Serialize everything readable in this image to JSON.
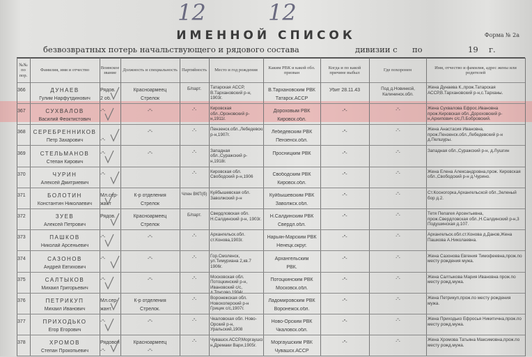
{
  "handwritten": {
    "sheet1": "12",
    "sheet2": "12"
  },
  "title": "ИМЕННОЙ СПИСОК",
  "form_label": "Форма № 2а",
  "subtitle": {
    "text": "безвозвратных потерь начальствующего и рядового состава",
    "division": "дивизии с",
    "to": "по",
    "year": "19",
    "year_suffix": "г."
  },
  "headers": [
    "№№ по пор.",
    "Фамилия, имя и отчество",
    "Воинское звание",
    "Должность и специальность",
    "Партийность",
    "Место и год рождения",
    "Каким РВК и какой обл. призван",
    "Когда и по какой причине выбыл",
    "Где похоронен",
    "Имя, отчество и фамилия, адрес жены или родителей"
  ],
  "highlight_color": "#f07878",
  "rows": [
    {
      "num": "366",
      "surname": "ДУНАЕВ",
      "given": "Гулим Нарфутдинович",
      "rank": "Рядов.",
      "rank2": "2 об.",
      "pos": "Красноармеец",
      "pos2": "Стрелок",
      "party": "Б/парт.",
      "birth": "Татарская АССР, В.Тархановский р-н, 1903г.",
      "rvk": "В.Тархановским РВК",
      "rvk2": "Татарск.АССР",
      "when": "Убит 28.11.43",
      "burial": "Под д.Новинкой, Калининск.обл.",
      "relatives": "Жена Дунаева К.,прож.Татарская АССР,В.Тархановский р-н,с.Тарханы."
    },
    {
      "num": "367",
      "surname": "СУХВАЛОВ",
      "given": "Василий Феоктистович",
      "rank": "-\"-",
      "rank2": "",
      "pos": "-\"-",
      "pos2": "",
      "party": "-\"-",
      "birth": "Кировская обл.,Ороновский р-н,1911г.",
      "rvk": "Дороховым РВК",
      "rvk2": "Кировск.обл.",
      "when": "-\"-",
      "burial": "-\"-",
      "relatives": "Жена Сухвалова Ефрос.Ивановна прож.Кировская обл.,Дороховский р-н,Архипович с/с,П.Бобровский."
    },
    {
      "num": "368",
      "surname": "СЕРЕБРЕННИКОВ",
      "given": "Петр Захарович",
      "rank": "",
      "rank2": "-\"-",
      "pos": "-\"-",
      "pos2": "",
      "party": "-\"-",
      "birth": "Пензенск.обл.,Лебедевский р-н,1907г.",
      "rvk": "Лебедевским РВК",
      "rvk2": "Пензенск.обл.",
      "when": "-\"-",
      "burial": "-\"-",
      "relatives": "Жена Анастасия Ивановна, прож.Пензенск.обл.,Лебедевский р-н д.Пелшуры."
    },
    {
      "num": "369",
      "surname": "СТЕЛЬМАНОВ",
      "given": "Степан Кирович",
      "rank": "-\"-",
      "rank2": "",
      "pos": "-\"-",
      "pos2": "",
      "party": "-\"-",
      "birth": "Западная обл.,Суражский р-н,1918г.",
      "rvk": "Просницким РВК",
      "rvk2": "",
      "when": "-\"-",
      "burial": "-\"-",
      "relatives": "Западная обл.,Суражский р-н, д.Лушгин"
    },
    {
      "num": "370",
      "surname": "ЧУРИН",
      "given": "Алексей Дмитриевич",
      "rank": "-\"-",
      "rank2": "",
      "pos": "",
      "pos2": "",
      "party": "-\"-",
      "birth": "Кировская обл. Свободский р-н,1906",
      "rvk": "Свободским РВК",
      "rvk2": "Кировск.обл.",
      "when": "-\"-",
      "burial": "-\"-",
      "relatives": "Жена Елена Александровна,прож. Кировская обл.,Свободский р-н д.Чурино."
    },
    {
      "num": "371",
      "surname": "БОЛОТИН",
      "given": "Константин Николаевич",
      "rank": "Мл.сер-",
      "rank2": "жант",
      "pos": "К-р отделения",
      "pos2": "Стрелок",
      "party": "Член ВКП(б)",
      "birth": "Куйбышевская обл. Заволжский р-н",
      "rvk": "Куйбышевским РВК",
      "rvk2": "Заволжск.обл.",
      "when": "-\"-",
      "burial": "-\"-",
      "relatives": "Ст.Косногорка,Архангельской обл.,Зеленый бор д.2."
    },
    {
      "num": "372",
      "surname": "ЗУЕВ",
      "given": "Алексей Петрович",
      "rank": "Рядов.",
      "rank2": "",
      "pos": "Красноармеец",
      "pos2": "Стрелок",
      "party": "Б/парт.",
      "birth": "Свердловская обл. Н.Салдинский р-н, 1903г.",
      "rvk": "Н.Салдинским РВК",
      "rvk2": "Свердл.обл.",
      "when": "-\"-",
      "burial": "-\"-",
      "relatives": "Тетя Пелагея Арсентьевна, прож.Свердловская обл.,Н.Салдинский р-н,3 Подушинская д.107."
    },
    {
      "num": "373",
      "surname": "ПАШКОВ",
      "given": "Николай Арсеньевич",
      "rank": "-\"-",
      "rank2": "",
      "pos": "-\"-",
      "pos2": "",
      "party": "-\"-",
      "birth": "Архангельск.обл. ст.Конова,1903г.",
      "rvk": "Нарьян-Марским РВК",
      "rvk2": "Ненецк.округ.",
      "when": "-\"-",
      "burial": "-\"-",
      "relatives": "Архангельск.обл.ст.Конова д.Данов,Жена Пашкова А.Николаевна."
    },
    {
      "num": "374",
      "surname": "САЗОНОВ",
      "given": "Андрей Евтихович",
      "rank": "-\"-",
      "rank2": "",
      "pos": "-\"-",
      "pos2": "",
      "party": "-\"-",
      "birth": "Гор.Смоленск, ул.Тимуриана 2,кв.7 1906г.",
      "rvk": "Архангельским",
      "rvk2": "РВК.",
      "when": "-\"-",
      "burial": "-\"-",
      "relatives": "Жена Сазонова Евгения Тимофеевна,прож.по месту рождения мужа."
    },
    {
      "num": "375",
      "surname": "САЛТЫКОВ",
      "given": "Михаил Григорьевич",
      "rank": "-\"-",
      "rank2": "",
      "pos": "-\"-",
      "pos2": "",
      "party": "-\"-",
      "birth": "Московская обл. Потоцкинский р-н, Ивановский с/с, д.Трусово,1904г.",
      "rvk": "Потоцкинским РВК",
      "rvk2": "Московск.обл.",
      "when": "-\"-",
      "burial": "-\"-",
      "relatives": "Жена Салтыкова Мария Ивановна прож.по месту рожд.мужа."
    },
    {
      "num": "376",
      "surname": "ПЕТРИКУП",
      "given": "Михаил Иванович",
      "rank": "Мл.сер-",
      "rank2": "жант.",
      "pos": "К-р отделения",
      "pos2": "Стрелок.",
      "party": "-\"-",
      "birth": "Воронежская обл. Новохоперский р-н Грицик с/с,1907г.",
      "rvk": "Ладомировским РВК",
      "rvk2": "Воронежск.обл.",
      "when": "-\"-",
      "burial": "-\"-",
      "relatives": "Жена Петрикуп,прож.по месту рождения мужа."
    },
    {
      "num": "377",
      "surname": "ПРИХОДЬКО",
      "given": "Егор Егорович",
      "rank": "-\"-",
      "rank2": "",
      "pos": "-\"-",
      "pos2": "",
      "party": "-\"-",
      "birth": "Чкаловская обл. Ново-Орский р-н, Уральский,1908",
      "rvk": "Ново-Орским РВК",
      "rvk2": "Чкаловск.обл.",
      "when": "-\"-",
      "burial": "-\"-",
      "relatives": "Жена Приходько Ефросья Никитична,прож.по месту рожд.мужа."
    },
    {
      "num": "378",
      "surname": "ХРОМОВ",
      "given": "Степан Прокопьевич",
      "rank": "Рядовой",
      "rank2": "-\"-",
      "pos": "Красноармеец",
      "pos2": "-\"-",
      "party": "-\"-",
      "birth": "Чувашск.АССР,Моргаушск.р-н,Дремаки Вари,1905г.",
      "rvk": "Моргаушским РВК",
      "rvk2": "Чувашск.АССР",
      "when": "-\"-",
      "burial": "-\"-",
      "relatives": "Жена Хромова Татьяна Максимовна,прож.по месту рожд.мужа."
    }
  ]
}
